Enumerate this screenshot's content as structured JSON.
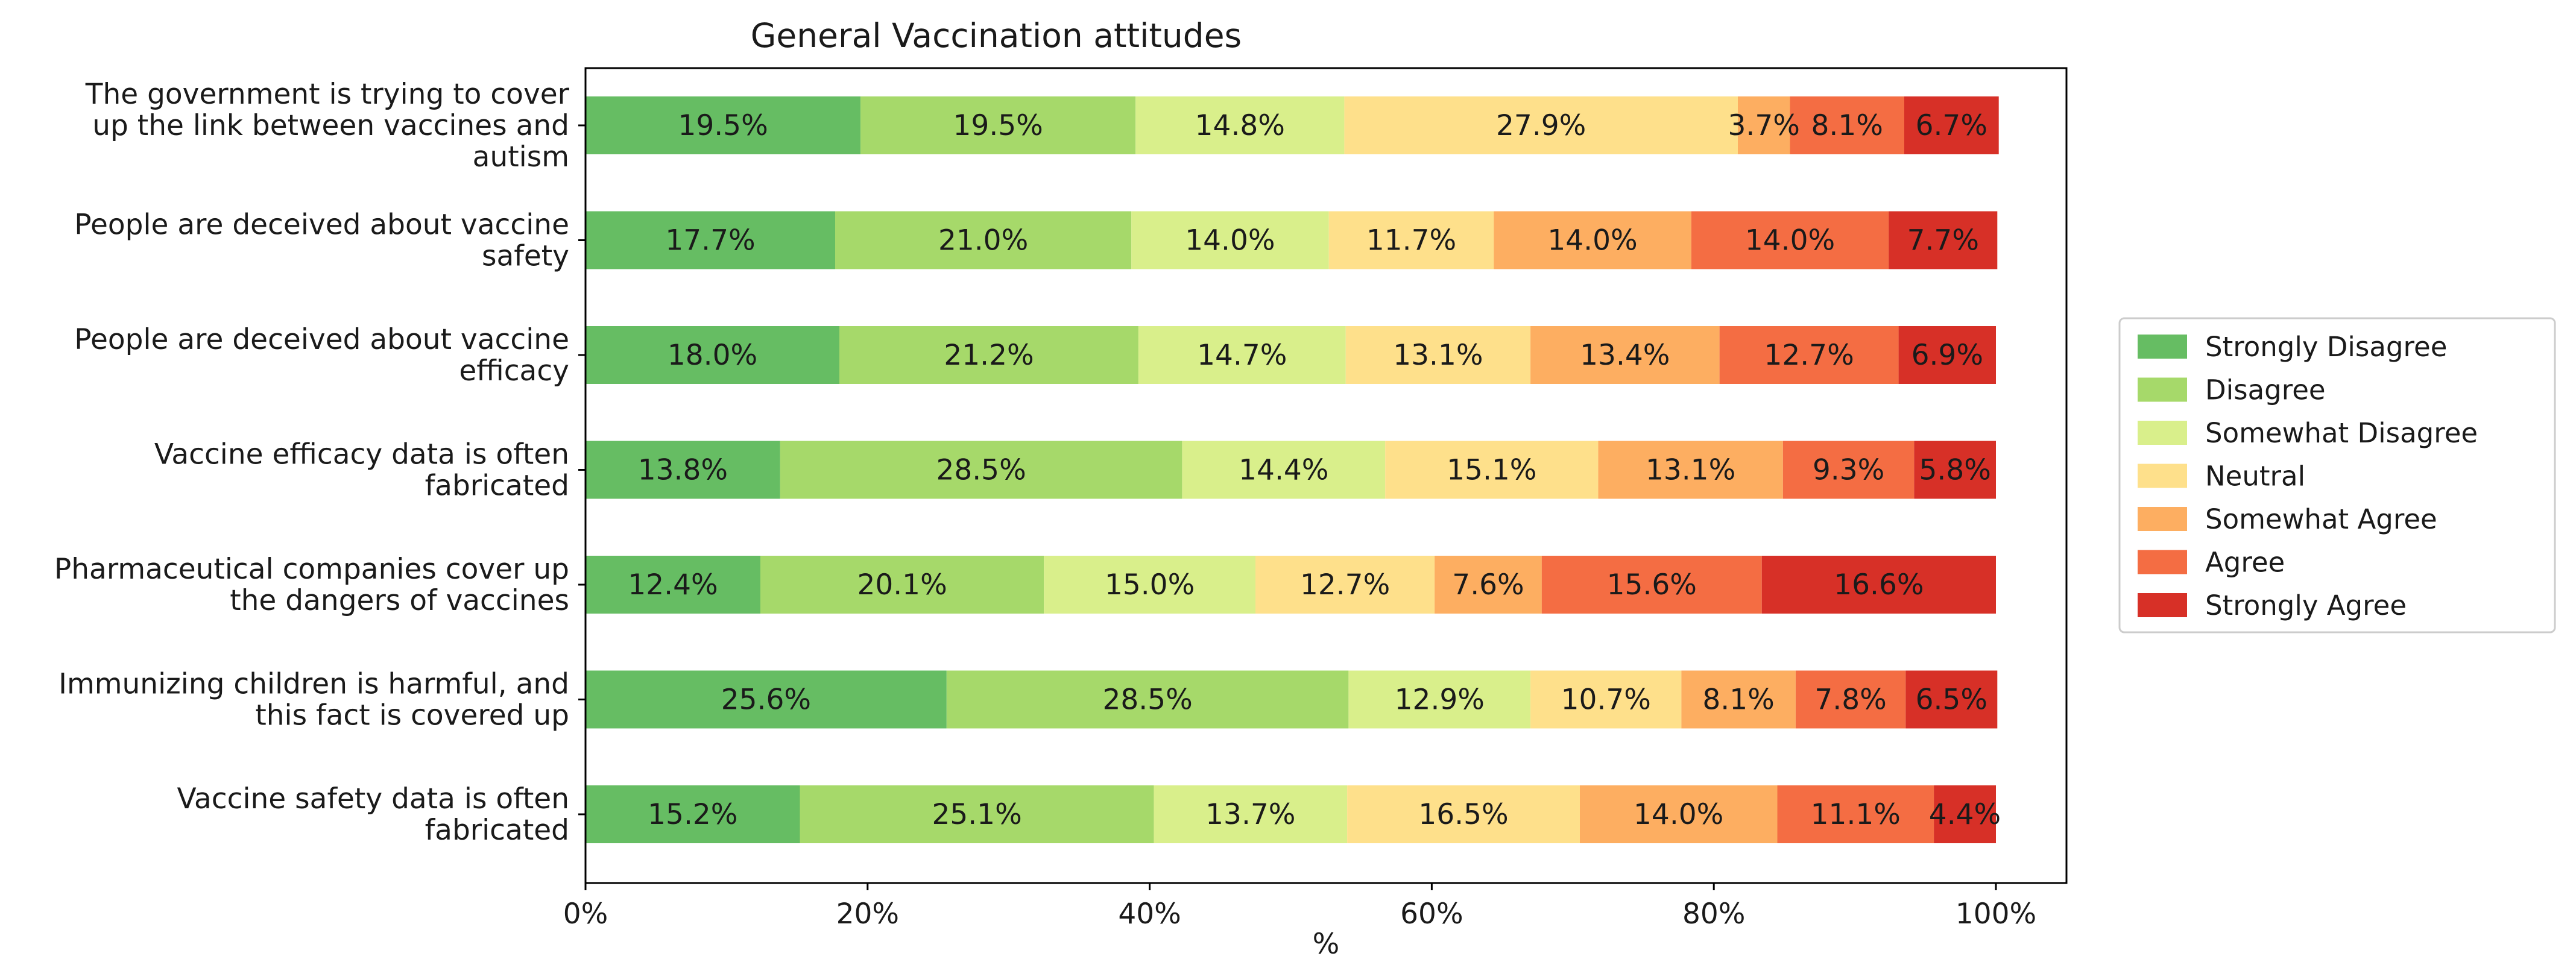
{
  "chart_data": {
    "type": "bar",
    "orientation": "horizontal",
    "stacked": true,
    "title": "General Vaccination attitudes",
    "xlabel": "%",
    "ylabel": "",
    "xlim": [
      0,
      105
    ],
    "xticks": [
      0,
      20,
      40,
      60,
      80,
      100
    ],
    "xtick_labels": [
      "0%",
      "20%",
      "40%",
      "60%",
      "80%",
      "100%"
    ],
    "grid": false,
    "legend_position": "right",
    "categories": [
      "The government is trying to cover up the link between vaccines and autism",
      "People are deceived about vaccine safety",
      "People are deceived about vaccine efficacy",
      "Vaccine efficacy data is often fabricated",
      "Pharmaceutical companies cover up the dangers of vaccines",
      "Immunizing children is harmful, and this fact is covered up",
      "Vaccine safety data is often fabricated"
    ],
    "category_lines": [
      [
        "The government is trying to cover",
        "up the link between vaccines and",
        "autism"
      ],
      [
        "People are deceived about vaccine",
        "safety"
      ],
      [
        "People are deceived about vaccine",
        "efficacy"
      ],
      [
        "Vaccine efficacy data is often",
        "fabricated"
      ],
      [
        "Pharmaceutical companies cover up",
        "the dangers of vaccines"
      ],
      [
        "Immunizing children is harmful, and",
        "this fact is covered up"
      ],
      [
        "Vaccine safety data is often",
        "fabricated"
      ]
    ],
    "series": [
      {
        "name": "Strongly Disagree",
        "color": "#66bd63",
        "values": [
          19.5,
          17.7,
          18.0,
          13.8,
          12.4,
          25.6,
          15.2
        ]
      },
      {
        "name": "Disagree",
        "color": "#a6d96a",
        "values": [
          19.5,
          21.0,
          21.2,
          28.5,
          20.1,
          28.5,
          25.1
        ]
      },
      {
        "name": "Somewhat Disagree",
        "color": "#d9ef8b",
        "values": [
          14.8,
          14.0,
          14.7,
          14.4,
          15.0,
          12.9,
          13.7
        ]
      },
      {
        "name": "Neutral",
        "color": "#fee08b",
        "values": [
          27.9,
          11.7,
          13.1,
          15.1,
          12.7,
          10.7,
          16.5
        ]
      },
      {
        "name": "Somewhat Agree",
        "color": "#fdae61",
        "values": [
          3.7,
          14.0,
          13.4,
          13.1,
          7.6,
          8.1,
          14.0
        ]
      },
      {
        "name": "Agree",
        "color": "#f46d43",
        "values": [
          8.1,
          14.0,
          12.7,
          9.3,
          15.6,
          7.8,
          11.1
        ]
      },
      {
        "name": "Strongly Agree",
        "color": "#d73027",
        "values": [
          6.7,
          7.7,
          6.9,
          5.8,
          16.6,
          6.5,
          4.4
        ]
      }
    ],
    "value_format": "{v}%"
  }
}
